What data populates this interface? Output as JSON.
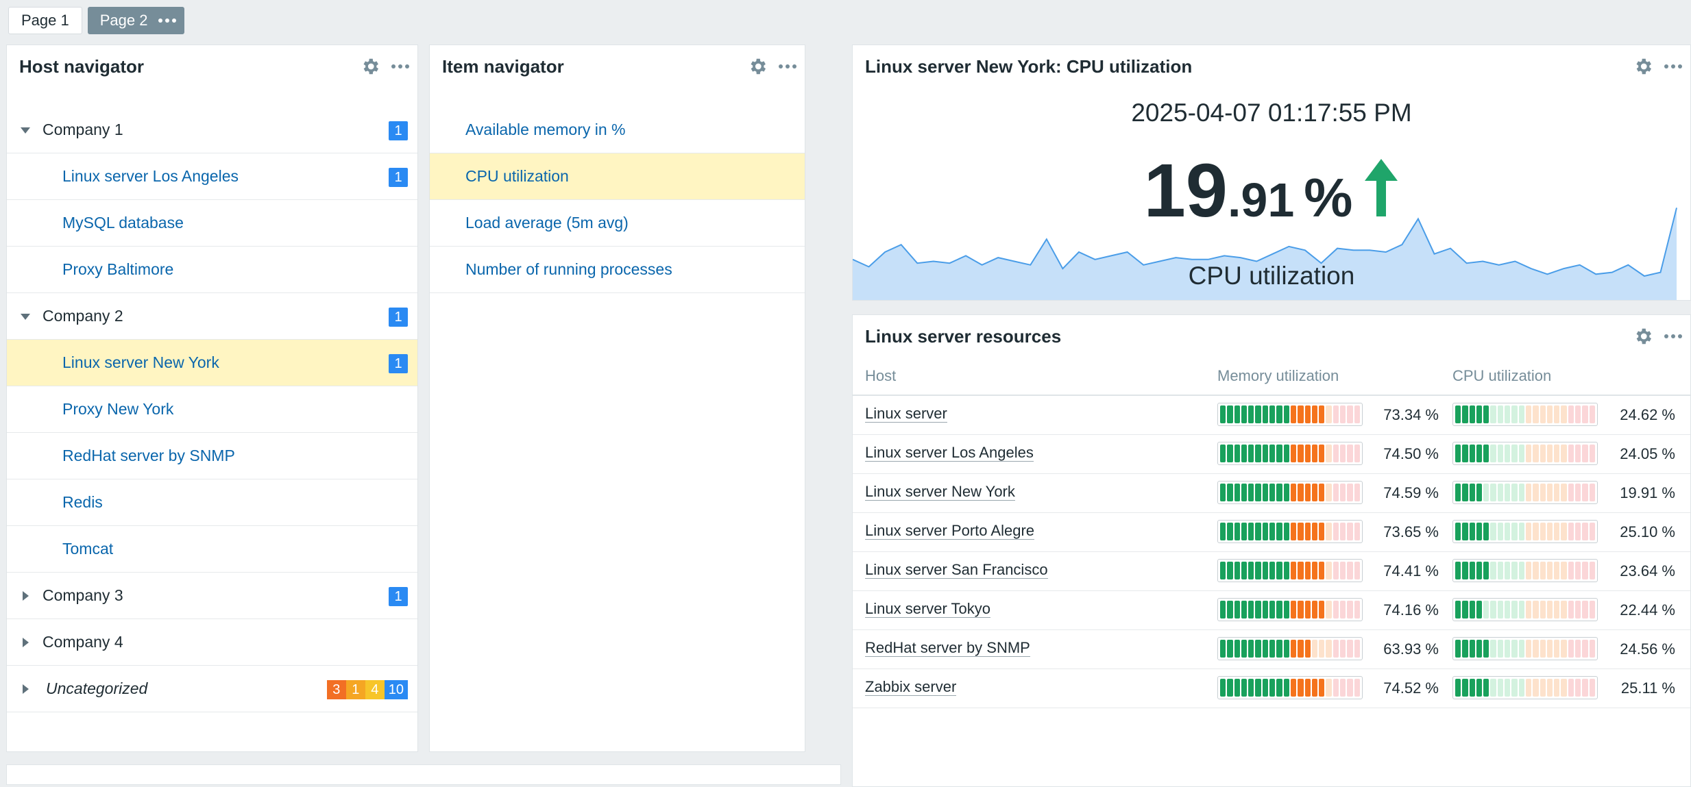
{
  "tabs": [
    {
      "label": "Page 1",
      "active": false
    },
    {
      "label": "Page 2",
      "active": true
    }
  ],
  "host_navigator": {
    "title": "Host navigator",
    "rows": [
      {
        "type": "group",
        "label": "Company 1",
        "expanded": true,
        "badge": "1"
      },
      {
        "type": "host",
        "label": "Linux server Los Angeles",
        "badge": "1"
      },
      {
        "type": "host",
        "label": "MySQL database"
      },
      {
        "type": "host",
        "label": "Proxy Baltimore"
      },
      {
        "type": "group",
        "label": "Company 2",
        "expanded": true,
        "badge": "1"
      },
      {
        "type": "host",
        "label": "Linux server New York",
        "badge": "1",
        "selected": true
      },
      {
        "type": "host",
        "label": "Proxy New York"
      },
      {
        "type": "host",
        "label": "RedHat server by SNMP"
      },
      {
        "type": "host",
        "label": "Redis"
      },
      {
        "type": "host",
        "label": "Tomcat"
      },
      {
        "type": "group",
        "label": "Company 3",
        "expanded": false,
        "badge": "1"
      },
      {
        "type": "group",
        "label": "Company 4",
        "expanded": false
      },
      {
        "type": "group",
        "label": "Uncategorized",
        "expanded": false,
        "italic": true,
        "badges": [
          {
            "v": "3",
            "color": "#f26f24"
          },
          {
            "v": "1",
            "color": "#f5a623"
          },
          {
            "v": "4",
            "color": "#f7c52a"
          },
          {
            "v": "10",
            "color": "#2a8af3"
          }
        ]
      }
    ]
  },
  "item_navigator": {
    "title": "Item navigator",
    "items": [
      {
        "label": "Available memory in %"
      },
      {
        "label": "CPU utilization",
        "selected": true
      },
      {
        "label": "Load average (5m avg)"
      },
      {
        "label": "Number of running processes"
      }
    ]
  },
  "item_value": {
    "title": "Linux server New York: CPU utilization",
    "time": "2025-04-07 01:17:55 PM",
    "value_int": "19",
    "value_dec": ".91",
    "unit": "%",
    "trend": "up",
    "trend_color": "#1fa56a",
    "description": "CPU utilization",
    "sparkline": [
      22,
      18,
      26,
      30,
      20,
      21,
      20,
      24,
      19,
      23,
      21,
      19,
      33,
      17,
      26,
      22,
      24,
      26,
      19,
      21,
      23,
      22,
      22,
      24,
      23,
      21,
      25,
      29,
      27,
      20,
      28,
      27,
      27,
      26,
      30,
      44,
      25,
      28,
      20,
      21,
      19,
      21,
      17,
      14,
      17,
      19,
      14,
      15,
      19,
      13,
      15,
      50
    ]
  },
  "resources": {
    "title": "Linux server resources",
    "columns": [
      "Host",
      "Memory utilization",
      "CPU utilization"
    ],
    "rows": [
      {
        "host": "Linux server",
        "mem": 73.34,
        "mem_label": "73.34 %",
        "cpu": 24.62,
        "cpu_label": "24.62 %"
      },
      {
        "host": "Linux server Los Angeles",
        "mem": 74.5,
        "mem_label": "74.50 %",
        "cpu": 24.05,
        "cpu_label": "24.05 %"
      },
      {
        "host": "Linux server New York",
        "mem": 74.59,
        "mem_label": "74.59 %",
        "cpu": 19.91,
        "cpu_label": "19.91 %"
      },
      {
        "host": "Linux server Porto Alegre",
        "mem": 73.65,
        "mem_label": "73.65 %",
        "cpu": 25.1,
        "cpu_label": "25.10 %"
      },
      {
        "host": "Linux server San Francisco",
        "mem": 74.41,
        "mem_label": "74.41 %",
        "cpu": 23.64,
        "cpu_label": "23.64 %"
      },
      {
        "host": "Linux server Tokyo",
        "mem": 74.16,
        "mem_label": "74.16 %",
        "cpu": 22.44,
        "cpu_label": "22.44 %"
      },
      {
        "host": "RedHat server by SNMP",
        "mem": 63.93,
        "mem_label": "63.93 %",
        "cpu": 24.56,
        "cpu_label": "24.56 %"
      },
      {
        "host": "Zabbix server",
        "mem": 74.52,
        "mem_label": "74.52 %",
        "cpu": 25.11,
        "cpu_label": "25.11 %"
      }
    ]
  },
  "colors": {
    "green": "#19a15c",
    "green_light": "#d3f2df",
    "orange": "#f5731c",
    "orange_light": "#fde2cc",
    "red_light": "#fbd6d8",
    "badge_blue": "#2a8af3",
    "spark_fill": "#c6e0f9",
    "spark_line": "#4a9de8"
  },
  "icons": {
    "settings": "gear-icon",
    "more": "ellipsis-icon",
    "expand": "chevron-icon",
    "trend": "arrow-up-icon"
  }
}
